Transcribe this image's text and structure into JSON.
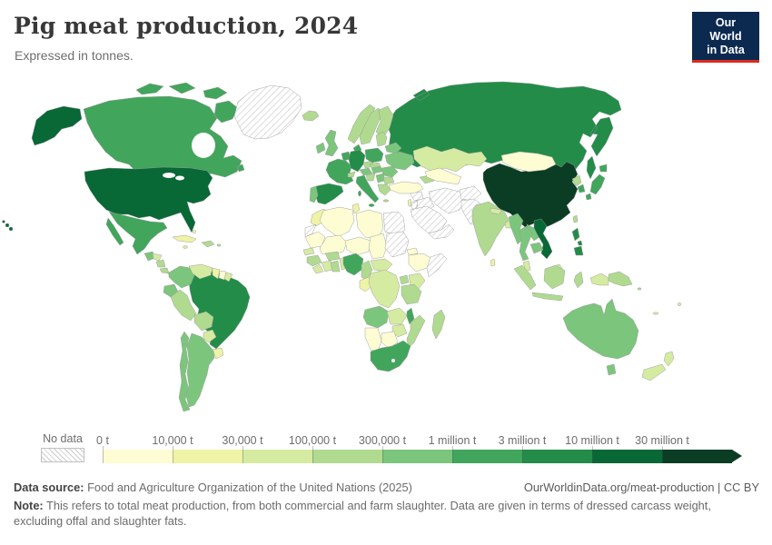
{
  "theme": {
    "logo_bg": "#0c2a50",
    "logo_red": "#dc2a1f"
  },
  "header": {
    "title": "Pig meat production, 2024",
    "subtitle": "Expressed in tonnes."
  },
  "logo": {
    "line1": "Our World",
    "line2": "in Data"
  },
  "footer": {
    "datasource_label": "Data source:",
    "datasource_text": "Food and Agriculture Organization of the United Nations (2025)",
    "link": "OurWorldinData.org/meat-production | CC BY",
    "note_label": "Note:",
    "note_text": "This refers to total meat production, from both commercial and farm slaughter. Data are given in terms of dressed carcass weight, excluding offal and slaughter fats."
  },
  "chart_data": {
    "type": "choropleth",
    "title": "Pig meat production, 2024",
    "unit": "tonnes",
    "legend": {
      "no_data_label": "No data",
      "bins": [
        {
          "label": "0 t",
          "color": "#fdfcd3"
        },
        {
          "label": "10,000 t",
          "color": "#eef3a6"
        },
        {
          "label": "30,000 t",
          "color": "#d5eba2"
        },
        {
          "label": "100,000 t",
          "color": "#b0da90"
        },
        {
          "label": "300,000 t",
          "color": "#7cc57c"
        },
        {
          "label": "1 million t",
          "color": "#42a55c"
        },
        {
          "label": "3 million t",
          "color": "#238c49"
        },
        {
          "label": "10 million t",
          "color": "#086836"
        },
        {
          "label": "30 million t",
          "color": "#0a3d24"
        }
      ]
    },
    "countries": {
      "china": "30 million t",
      "united_states": "10 million t",
      "vietnam": "10 million t",
      "brazil": "3 million t",
      "russia": "3 million t",
      "spain": "3 million t",
      "germany": "3 million t",
      "philippines": "3 million t",
      "canada": "1 million t",
      "mexico": "1 million t",
      "france": "1 million t",
      "italy": "1 million t",
      "poland": "1 million t",
      "denmark": "1 million t",
      "netherlands": "1 million t",
      "japan": "1 million t",
      "south_korea": "1 million t",
      "nigeria": "1 million t",
      "south_africa": "1 million t",
      "malawi": "1 million t",
      "united_kingdom": "300,000 t",
      "ireland": "300,000 t",
      "portugal": "300,000 t",
      "austria": "300,000 t",
      "hungary": "300,000 t",
      "romania": "300,000 t",
      "serbia": "300,000 t",
      "belarus": "300,000 t",
      "ukraine": "300,000 t",
      "colombia": "300,000 t",
      "ecuador": "300,000 t",
      "argentina": "300,000 t",
      "chile": "300,000 t",
      "guatemala": "300,000 t",
      "angola": "300,000 t",
      "myanmar": "300,000 t",
      "thailand": "300,000 t",
      "laos": "300,000 t",
      "cambodia": "300,000 t",
      "australia": "300,000 t",
      "iceland": "100,000 t",
      "norway": "100,000 t",
      "sweden": "100,000 t",
      "finland": "100,000 t",
      "baltics": "100,000 t",
      "switzerland": "100,000 t",
      "croatia_bosnia": "100,000 t",
      "greece": "100,000 t",
      "bulgaria": "100,000 t",
      "czechia": "100,000 t",
      "slovakia": "100,000 t",
      "caucasus": "100,000 t",
      "india": "100,000 t",
      "north_korea": "100,000 t",
      "taiwan": "100,000 t",
      "indonesia": "100,000 t",
      "papua_new_guinea": "100,000 t",
      "hispaniola": "100,000 t",
      "puerto_rico": "100,000 t",
      "nicaragua": "100,000 t",
      "costa_rica": "100,000 t",
      "panama": "100,000 t",
      "peru": "100,000 t",
      "bolivia": "100,000 t",
      "guinea": "100,000 t",
      "ghana": "100,000 t",
      "burkina_faso": "100,000 t",
      "cameroon": "100,000 t",
      "uganda": "100,000 t",
      "tanzania": "100,000 t",
      "mozambique": "100,000 t",
      "madagascar": "100,000 t",
      "solomon_islands": "100,000 t",
      "kazakhstan": "30,000 t",
      "nepal": "30,000 t",
      "bangladesh": "30,000 t",
      "malaysia": "30,000 t",
      "jamaica": "30,000 t",
      "honduras": "30,000 t",
      "venezuela": "30,000 t",
      "paraguay": "30,000 t",
      "french_guiana": "30,000 t",
      "senegal": "30,000 t",
      "ivory_coast": "30,000 t",
      "togo_benin": "30,000 t",
      "sierra_leone_liberia": "30,000 t",
      "dr_congo": "30,000 t",
      "central_african_republic": "30,000 t",
      "kenya": "30,000 t",
      "zambia": "30,000 t",
      "zimbabwe": "30,000 t",
      "new_zealand": "30,000 t",
      "fiji": "30,000 t",
      "new_caledonia": "30,000 t",
      "indonesia_papua": "30,000 t",
      "cuba": "10,000 t",
      "bahamas": "10,000 t",
      "uruguay": "10,000 t",
      "guyana": "10,000 t",
      "morocco": "10,000 t",
      "tunisia": "10,000 t",
      "sri_lanka": "10,000 t",
      "israel": "10,000 t",
      "gabon_congo": "10,000 t",
      "mongolia": "0 t",
      "algeria": "0 t",
      "libya": "0 t",
      "mauritania": "0 t",
      "mali": "0 t",
      "niger": "0 t",
      "chad": "0 t",
      "ethiopia": "0 t",
      "eritrea": "0 t",
      "namibia": "0 t",
      "botswana": "0 t",
      "suriname": "0 t",
      "central_asia": "0 t",
      "turkey": "0 t",
      "greenland": "No data",
      "western_sahara": "No data",
      "egypt": "No data",
      "sudan": "No data",
      "somalia": "No data",
      "saudi_arabia": "No data",
      "yemen_oman": "No data",
      "iraq": "No data",
      "iran": "No data",
      "syria": "No data",
      "jordan": "No data",
      "afghanistan": "No data",
      "pakistan": "No data"
    }
  }
}
